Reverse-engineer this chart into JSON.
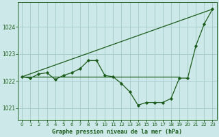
{
  "title": "Graphe pression niveau de la mer (hPa)",
  "background_color": "#cde8e8",
  "grid_color": "#a8cccc",
  "line_color": "#1a5c1a",
  "x_values": [
    0,
    1,
    2,
    3,
    4,
    5,
    6,
    7,
    8,
    9,
    10,
    11,
    12,
    13,
    14,
    15,
    16,
    17,
    18,
    19,
    20,
    21,
    22,
    23
  ],
  "flat_line": [
    1022.15,
    1022.15,
    1022.15,
    1022.15,
    1022.15,
    1022.15,
    1022.15,
    1022.15,
    1022.15,
    1022.15,
    1022.15,
    1022.15,
    1022.15,
    1022.15,
    1022.15,
    1022.15,
    1022.15,
    1022.15,
    1022.15,
    1022.15,
    null,
    null,
    null,
    null
  ],
  "diag_line_x": [
    0,
    23
  ],
  "diag_line_y": [
    1022.15,
    1024.65
  ],
  "wavy_line": [
    1022.15,
    1022.1,
    1022.25,
    1022.3,
    1022.05,
    1022.2,
    1022.3,
    1022.45,
    1022.75,
    1022.75,
    1022.2,
    1022.15,
    1021.9,
    1021.6,
    1021.1,
    1021.2,
    1021.2,
    1021.2,
    1021.35,
    1022.1,
    1022.1,
    1023.3,
    1024.1,
    1024.65
  ],
  "ylim": [
    1020.55,
    1024.9
  ],
  "yticks": [
    1021,
    1022,
    1023,
    1024
  ],
  "xticks": [
    0,
    1,
    2,
    3,
    4,
    5,
    6,
    7,
    8,
    9,
    10,
    11,
    12,
    13,
    14,
    15,
    16,
    17,
    18,
    19,
    20,
    21,
    22,
    23
  ],
  "marker": "D",
  "markersize": 2.2,
  "linewidth": 0.9,
  "title_fontsize": 6.0,
  "tick_fontsize": 5.0
}
